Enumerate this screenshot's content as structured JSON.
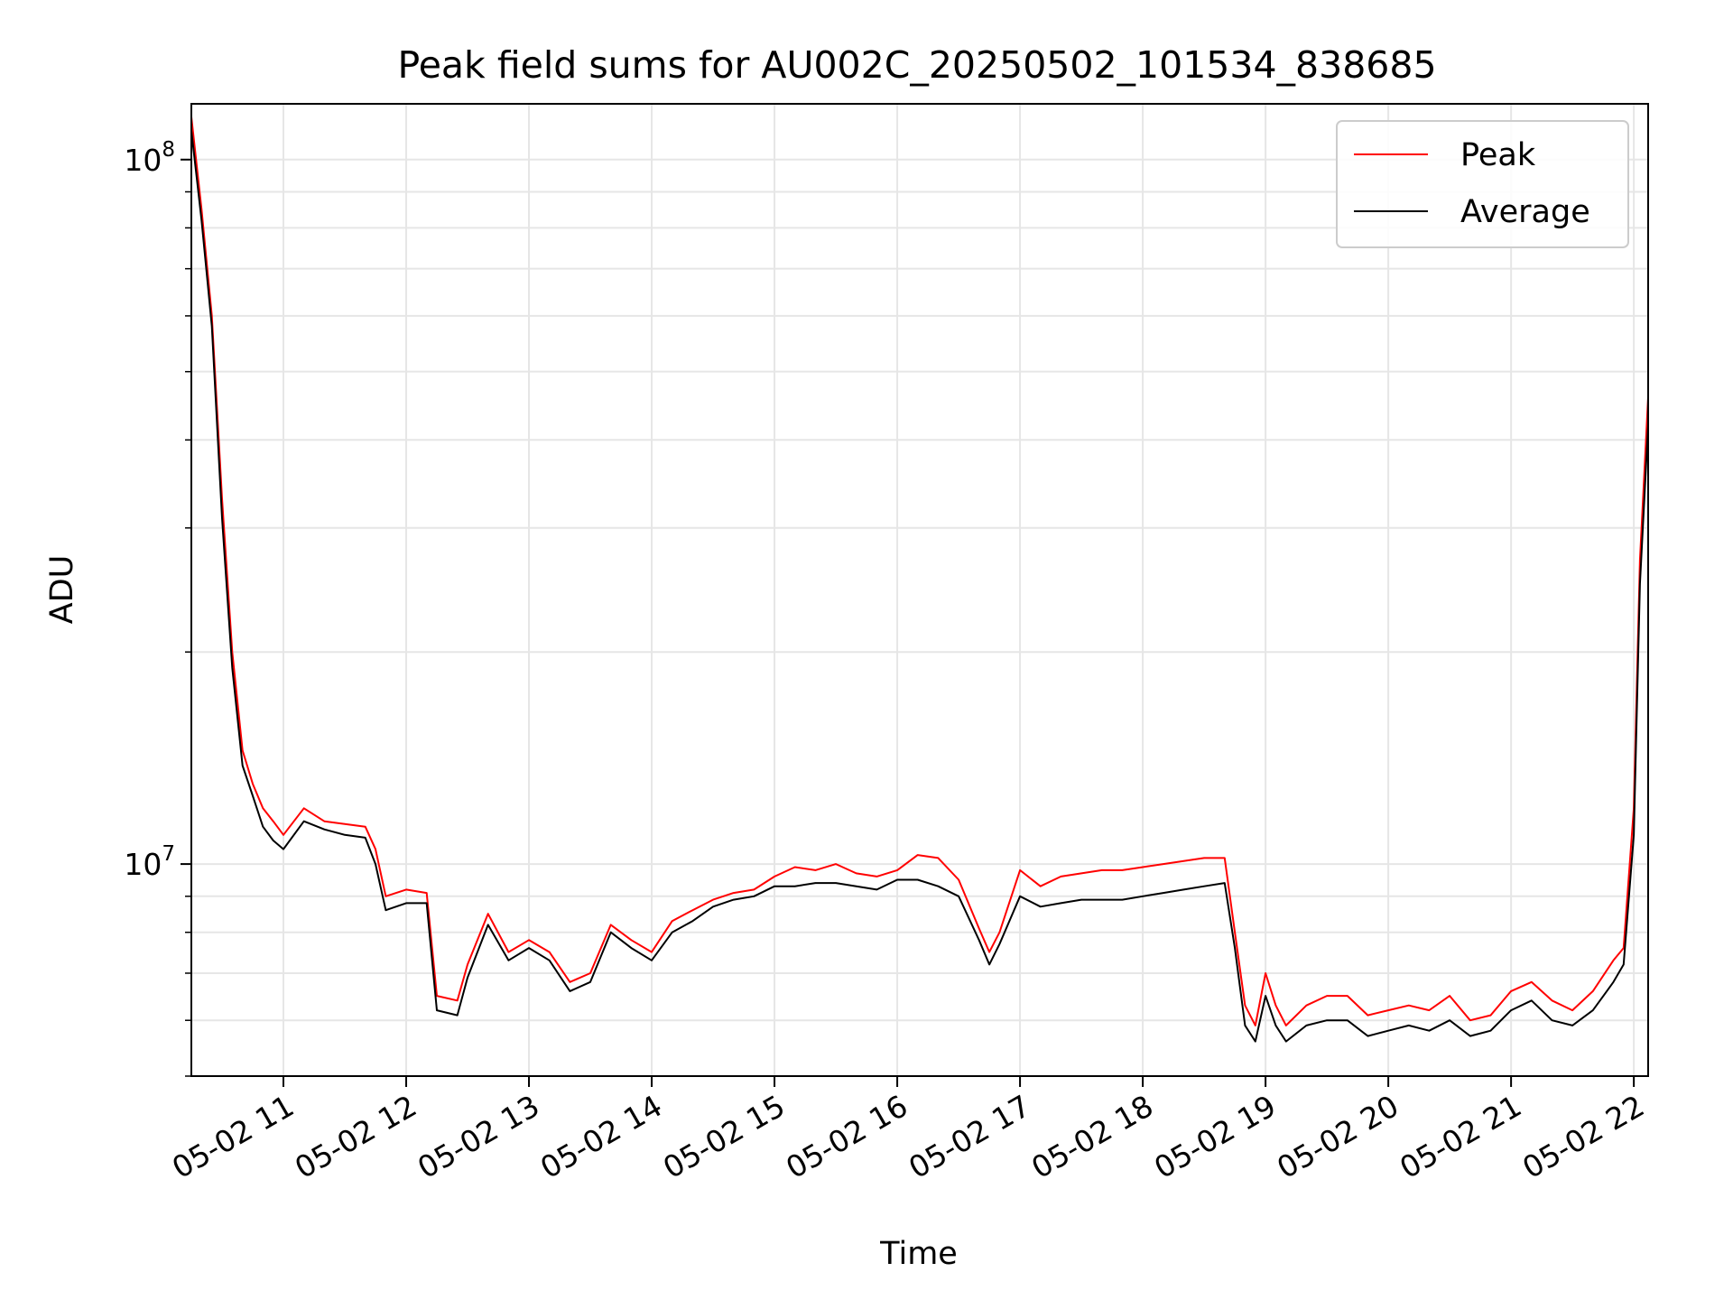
{
  "chart_data": {
    "type": "line",
    "title": "Peak field sums for AU002C_20250502_101534_838685",
    "xlabel": "Time",
    "ylabel": "ADU",
    "y_scale": "log",
    "ylim": [
      5000000,
      120000000
    ],
    "xlim": [
      "2025-05-02 10:15",
      "2025-05-02 22:07"
    ],
    "x_ticks": [
      {
        "at": "2025-05-02 11:00",
        "label": "05-02 11"
      },
      {
        "at": "2025-05-02 12:00",
        "label": "05-02 12"
      },
      {
        "at": "2025-05-02 13:00",
        "label": "05-02 13"
      },
      {
        "at": "2025-05-02 14:00",
        "label": "05-02 14"
      },
      {
        "at": "2025-05-02 15:00",
        "label": "05-02 15"
      },
      {
        "at": "2025-05-02 16:00",
        "label": "05-02 16"
      },
      {
        "at": "2025-05-02 17:00",
        "label": "05-02 17"
      },
      {
        "at": "2025-05-02 18:00",
        "label": "05-02 18"
      },
      {
        "at": "2025-05-02 19:00",
        "label": "05-02 19"
      },
      {
        "at": "2025-05-02 20:00",
        "label": "05-02 20"
      },
      {
        "at": "2025-05-02 21:00",
        "label": "05-02 21"
      },
      {
        "at": "2025-05-02 22:00",
        "label": "05-02 22"
      }
    ],
    "y_ticks": [
      {
        "value": 10000000,
        "base": "10",
        "exp": "7"
      },
      {
        "value": 100000000,
        "base": "10",
        "exp": "8"
      }
    ],
    "grid": true,
    "legend": "top-right",
    "series": [
      {
        "name": "Peak",
        "color": "#ff0000",
        "x": [
          "2025-05-02 10:15",
          "2025-05-02 10:20",
          "2025-05-02 10:25",
          "2025-05-02 10:30",
          "2025-05-02 10:35",
          "2025-05-02 10:40",
          "2025-05-02 10:45",
          "2025-05-02 10:50",
          "2025-05-02 10:55",
          "2025-05-02 11:00",
          "2025-05-02 11:10",
          "2025-05-02 11:20",
          "2025-05-02 11:30",
          "2025-05-02 11:40",
          "2025-05-02 11:45",
          "2025-05-02 11:50",
          "2025-05-02 12:00",
          "2025-05-02 12:10",
          "2025-05-02 12:15",
          "2025-05-02 12:25",
          "2025-05-02 12:30",
          "2025-05-02 12:40",
          "2025-05-02 12:50",
          "2025-05-02 13:00",
          "2025-05-02 13:10",
          "2025-05-02 13:20",
          "2025-05-02 13:30",
          "2025-05-02 13:40",
          "2025-05-02 13:50",
          "2025-05-02 14:00",
          "2025-05-02 14:10",
          "2025-05-02 14:20",
          "2025-05-02 14:30",
          "2025-05-02 14:40",
          "2025-05-02 14:50",
          "2025-05-02 15:00",
          "2025-05-02 15:10",
          "2025-05-02 15:20",
          "2025-05-02 15:30",
          "2025-05-02 15:40",
          "2025-05-02 15:50",
          "2025-05-02 16:00",
          "2025-05-02 16:10",
          "2025-05-02 16:20",
          "2025-05-02 16:30",
          "2025-05-02 16:40",
          "2025-05-02 16:45",
          "2025-05-02 16:50",
          "2025-05-02 17:00",
          "2025-05-02 17:10",
          "2025-05-02 17:20",
          "2025-05-02 17:30",
          "2025-05-02 17:40",
          "2025-05-02 17:50",
          "2025-05-02 18:00",
          "2025-05-02 18:10",
          "2025-05-02 18:20",
          "2025-05-02 18:30",
          "2025-05-02 18:40",
          "2025-05-02 18:45",
          "2025-05-02 18:50",
          "2025-05-02 18:55",
          "2025-05-02 19:00",
          "2025-05-02 19:05",
          "2025-05-02 19:10",
          "2025-05-02 19:20",
          "2025-05-02 19:30",
          "2025-05-02 19:40",
          "2025-05-02 19:50",
          "2025-05-02 20:00",
          "2025-05-02 20:10",
          "2025-05-02 20:20",
          "2025-05-02 20:30",
          "2025-05-02 20:40",
          "2025-05-02 20:50",
          "2025-05-02 21:00",
          "2025-05-02 21:10",
          "2025-05-02 21:20",
          "2025-05-02 21:30",
          "2025-05-02 21:40",
          "2025-05-02 21:50",
          "2025-05-02 21:55",
          "2025-05-02 22:00",
          "2025-05-02 22:03",
          "2025-05-02 22:07"
        ],
        "y": [
          115000000,
          85000000,
          60000000,
          33000000,
          20000000,
          14500000,
          13000000,
          12000000,
          11500000,
          11000000,
          12000000,
          11500000,
          11400000,
          11300000,
          10500000,
          9000000,
          9200000,
          9100000,
          6500000,
          6400000,
          7200000,
          8500000,
          7500000,
          7800000,
          7500000,
          6800000,
          7000000,
          8200000,
          7800000,
          7500000,
          8300000,
          8600000,
          8900000,
          9100000,
          9200000,
          9600000,
          9900000,
          9800000,
          10000000,
          9700000,
          9600000,
          9800000,
          10300000,
          10200000,
          9500000,
          8100000,
          7500000,
          8000000,
          9800000,
          9300000,
          9600000,
          9700000,
          9800000,
          9800000,
          9900000,
          10000000,
          10100000,
          10200000,
          10200000,
          8000000,
          6300000,
          5900000,
          7000000,
          6300000,
          5900000,
          6300000,
          6500000,
          6500000,
          6100000,
          6200000,
          6300000,
          6200000,
          6500000,
          6000000,
          6100000,
          6600000,
          6800000,
          6400000,
          6200000,
          6600000,
          7300000,
          7600000,
          12000000,
          27000000,
          46000000
        ]
      },
      {
        "name": "Average",
        "color": "#000000",
        "x": [
          "2025-05-02 10:15",
          "2025-05-02 10:20",
          "2025-05-02 10:25",
          "2025-05-02 10:30",
          "2025-05-02 10:35",
          "2025-05-02 10:40",
          "2025-05-02 10:45",
          "2025-05-02 10:50",
          "2025-05-02 10:55",
          "2025-05-02 11:00",
          "2025-05-02 11:10",
          "2025-05-02 11:20",
          "2025-05-02 11:30",
          "2025-05-02 11:40",
          "2025-05-02 11:45",
          "2025-05-02 11:50",
          "2025-05-02 12:00",
          "2025-05-02 12:10",
          "2025-05-02 12:15",
          "2025-05-02 12:25",
          "2025-05-02 12:30",
          "2025-05-02 12:40",
          "2025-05-02 12:50",
          "2025-05-02 13:00",
          "2025-05-02 13:10",
          "2025-05-02 13:20",
          "2025-05-02 13:30",
          "2025-05-02 13:40",
          "2025-05-02 13:50",
          "2025-05-02 14:00",
          "2025-05-02 14:10",
          "2025-05-02 14:20",
          "2025-05-02 14:30",
          "2025-05-02 14:40",
          "2025-05-02 14:50",
          "2025-05-02 15:00",
          "2025-05-02 15:10",
          "2025-05-02 15:20",
          "2025-05-02 15:30",
          "2025-05-02 15:40",
          "2025-05-02 15:50",
          "2025-05-02 16:00",
          "2025-05-02 16:10",
          "2025-05-02 16:20",
          "2025-05-02 16:30",
          "2025-05-02 16:40",
          "2025-05-02 16:45",
          "2025-05-02 16:50",
          "2025-05-02 17:00",
          "2025-05-02 17:10",
          "2025-05-02 17:20",
          "2025-05-02 17:30",
          "2025-05-02 17:40",
          "2025-05-02 17:50",
          "2025-05-02 18:00",
          "2025-05-02 18:10",
          "2025-05-02 18:20",
          "2025-05-02 18:30",
          "2025-05-02 18:40",
          "2025-05-02 18:45",
          "2025-05-02 18:50",
          "2025-05-02 18:55",
          "2025-05-02 19:00",
          "2025-05-02 19:05",
          "2025-05-02 19:10",
          "2025-05-02 19:20",
          "2025-05-02 19:30",
          "2025-05-02 19:40",
          "2025-05-02 19:50",
          "2025-05-02 20:00",
          "2025-05-02 20:10",
          "2025-05-02 20:20",
          "2025-05-02 20:30",
          "2025-05-02 20:40",
          "2025-05-02 20:50",
          "2025-05-02 21:00",
          "2025-05-02 21:10",
          "2025-05-02 21:20",
          "2025-05-02 21:30",
          "2025-05-02 21:40",
          "2025-05-02 21:50",
          "2025-05-02 21:55",
          "2025-05-02 22:00",
          "2025-05-02 22:03",
          "2025-05-02 22:07"
        ],
        "y": [
          110000000,
          82000000,
          58000000,
          31000000,
          19000000,
          13800000,
          12500000,
          11300000,
          10800000,
          10500000,
          11500000,
          11200000,
          11000000,
          10900000,
          10000000,
          8600000,
          8800000,
          8800000,
          6200000,
          6100000,
          6900000,
          8200000,
          7300000,
          7600000,
          7300000,
          6600000,
          6800000,
          8000000,
          7600000,
          7300000,
          8000000,
          8300000,
          8700000,
          8900000,
          9000000,
          9300000,
          9300000,
          9400000,
          9400000,
          9300000,
          9200000,
          9500000,
          9500000,
          9300000,
          9000000,
          7800000,
          7200000,
          7700000,
          9000000,
          8700000,
          8800000,
          8900000,
          8900000,
          8900000,
          9000000,
          9100000,
          9200000,
          9300000,
          9400000,
          7600000,
          5900000,
          5600000,
          6500000,
          5900000,
          5600000,
          5900000,
          6000000,
          6000000,
          5700000,
          5800000,
          5900000,
          5800000,
          6000000,
          5700000,
          5800000,
          6200000,
          6400000,
          6000000,
          5900000,
          6200000,
          6800000,
          7200000,
          11000000,
          25000000,
          42000000
        ]
      }
    ]
  }
}
